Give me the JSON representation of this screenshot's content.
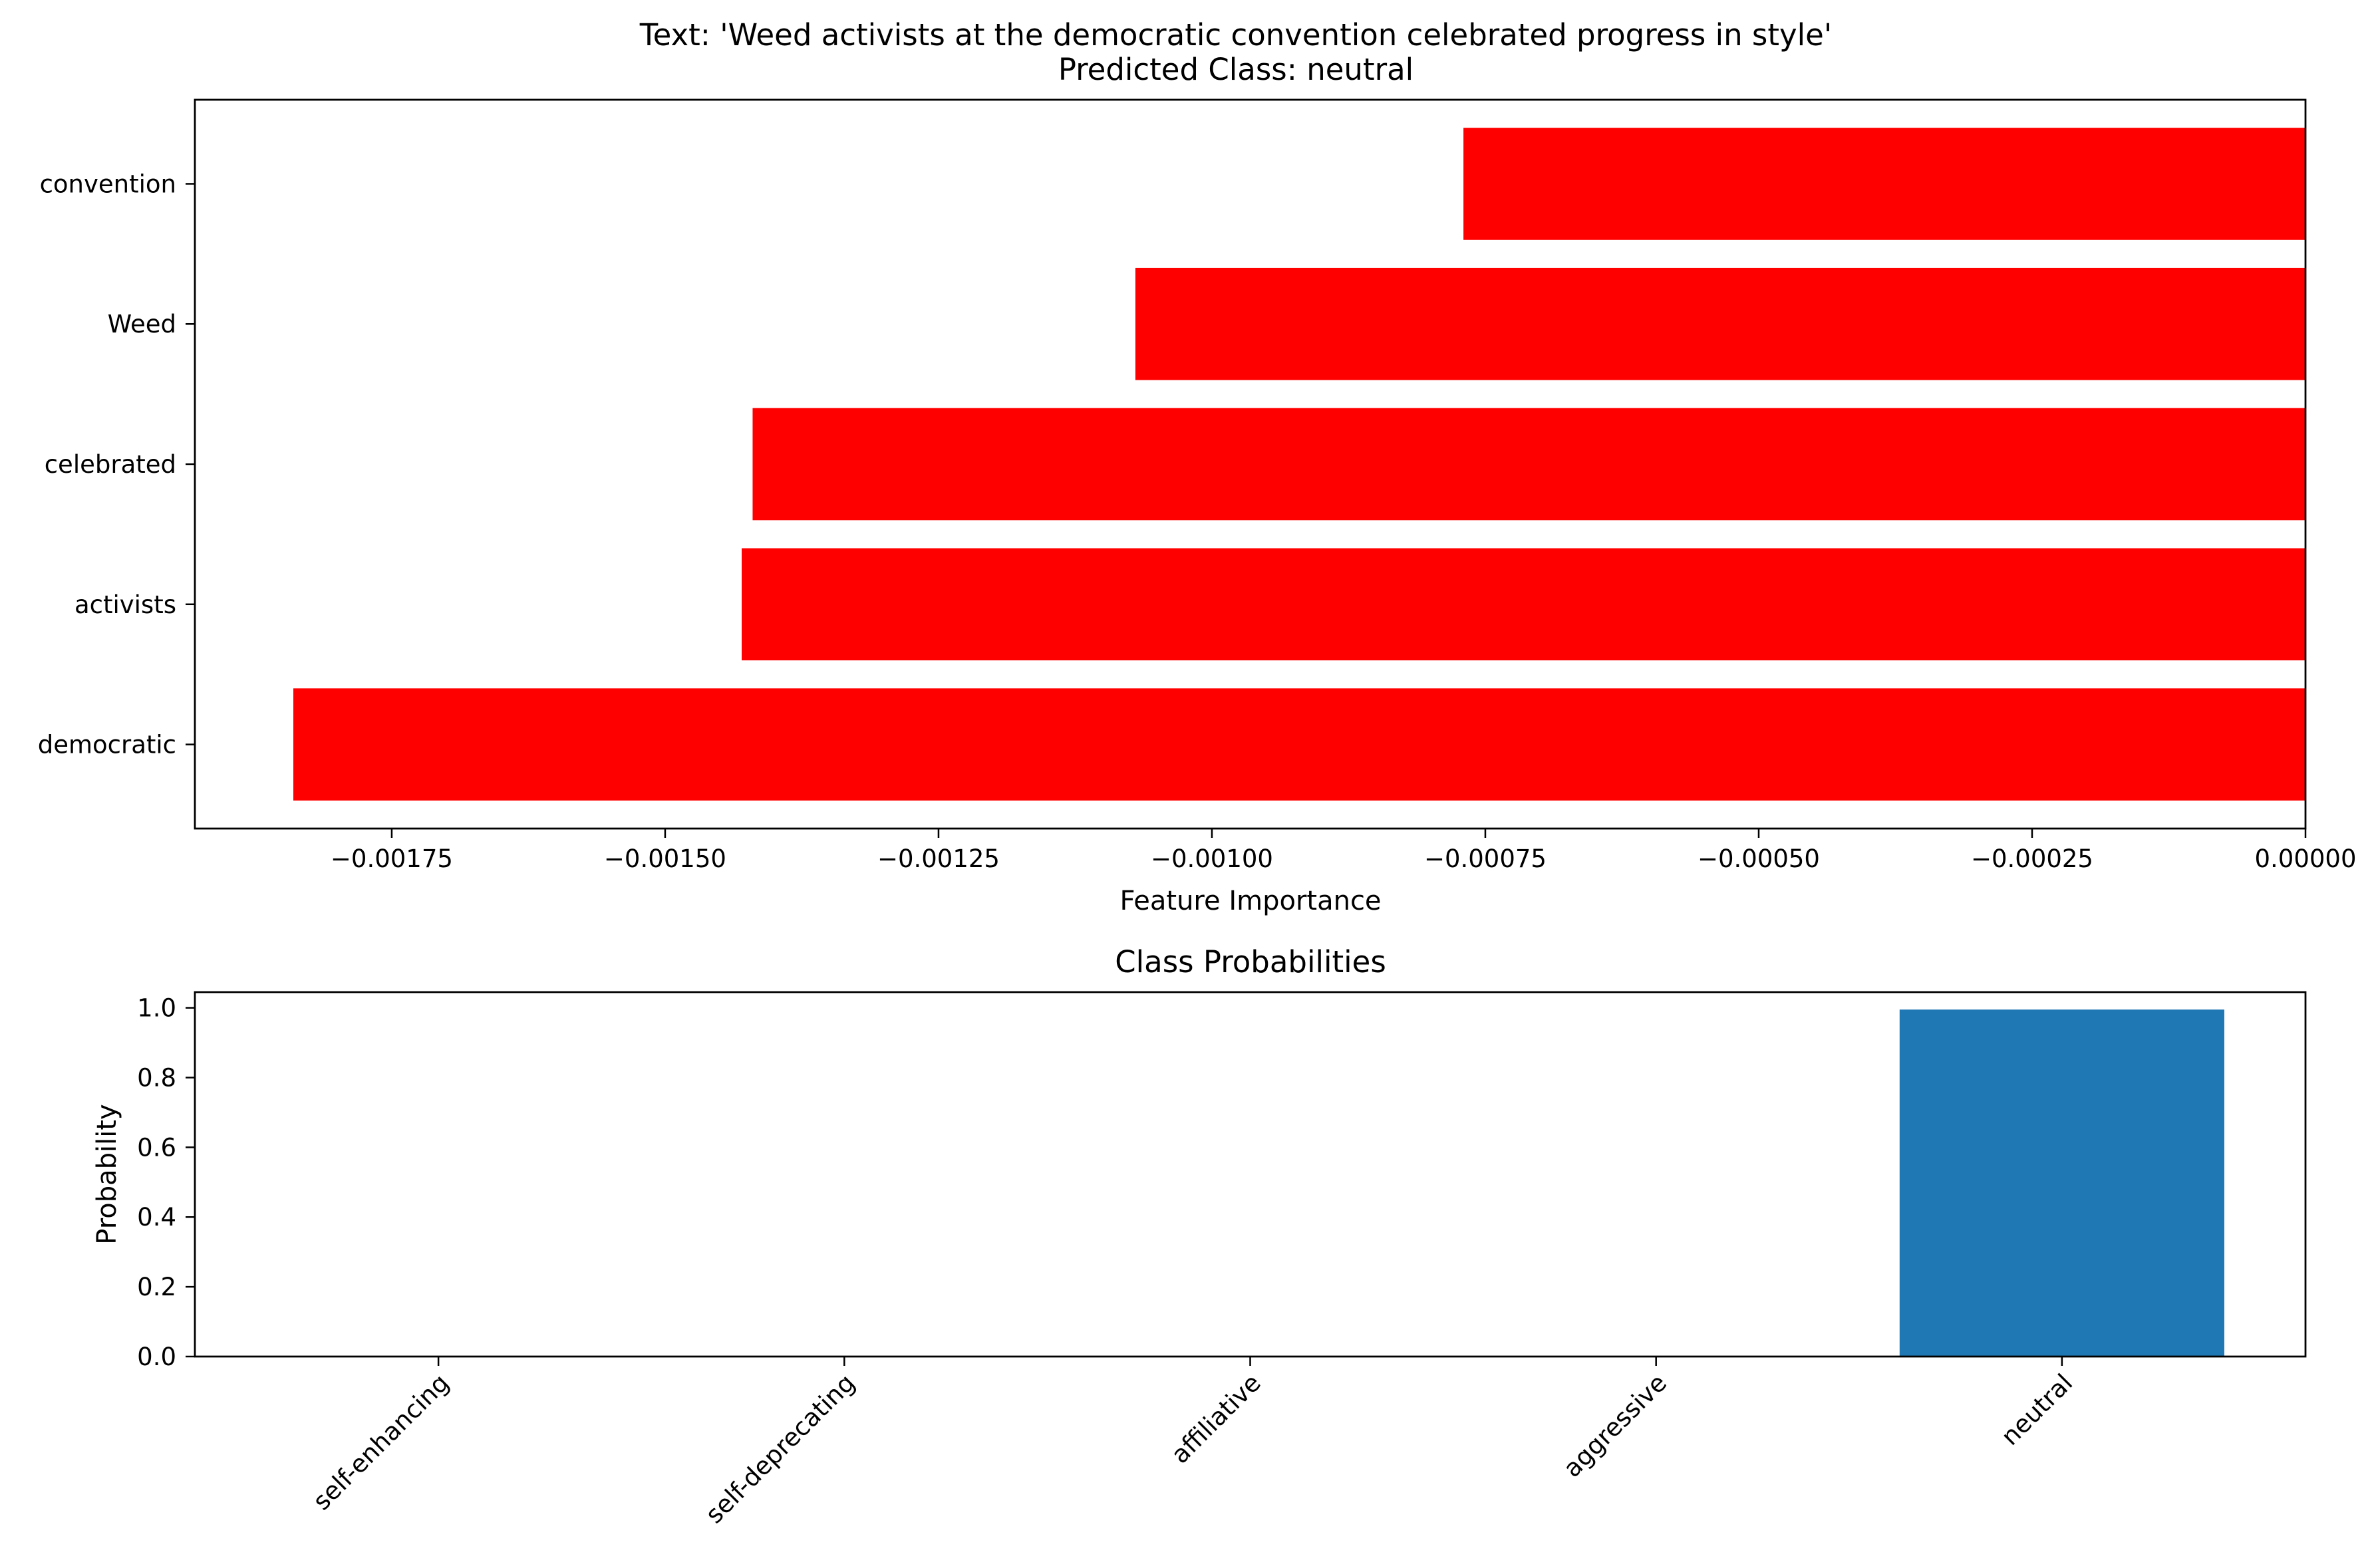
{
  "chart_data": [
    {
      "type": "bar",
      "orientation": "horizontal",
      "title": "Text: 'Weed activists at the democratic convention celebrated progress in style'",
      "subtitle": "Predicted Class: neutral",
      "xlabel": "Feature Importance",
      "ylabel": "",
      "categories": [
        "convention",
        "Weed",
        "celebrated",
        "activists",
        "democratic"
      ],
      "values": [
        -0.00077,
        -0.00107,
        -0.00142,
        -0.00143,
        -0.00184
      ],
      "xlim": [
        -0.00193,
        0.0
      ],
      "x_ticks": [
        -0.00175,
        -0.0015,
        -0.00125,
        -0.001,
        -0.00075,
        -0.0005,
        -0.00025,
        0.0
      ],
      "x_tick_labels": [
        "−0.00175",
        "−0.00150",
        "−0.00125",
        "−0.00100",
        "−0.00075",
        "−0.00050",
        "−0.00025",
        "0.00000"
      ],
      "bar_color": "#ff0000",
      "grid": false,
      "legend": "none"
    },
    {
      "type": "bar",
      "orientation": "vertical",
      "title": "Class Probabilities",
      "xlabel": "",
      "ylabel": "Probability",
      "categories": [
        "self-enhancing",
        "self-deprecating",
        "affiliative",
        "aggressive",
        "neutral"
      ],
      "values": [
        0.001,
        0.0,
        0.0,
        0.0,
        0.995
      ],
      "ylim": [
        0.0,
        1.045
      ],
      "y_ticks": [
        0.0,
        0.2,
        0.4,
        0.6,
        0.8,
        1.0
      ],
      "y_tick_labels": [
        "0.0",
        "0.2",
        "0.4",
        "0.6",
        "0.8",
        "1.0"
      ],
      "bar_color": "#1f77b4",
      "grid": false,
      "legend": "none"
    }
  ]
}
